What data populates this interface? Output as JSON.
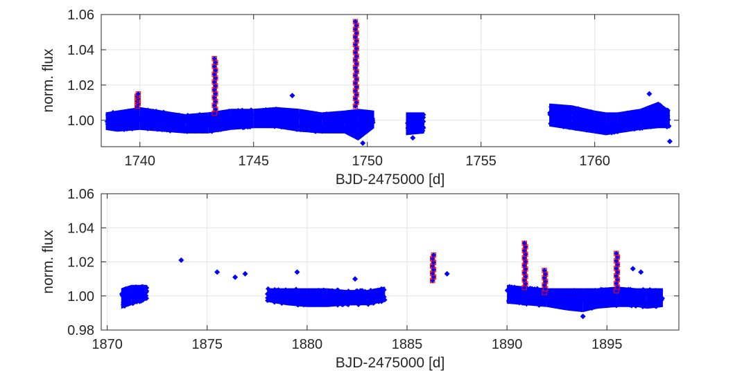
{
  "chart_data": [
    {
      "type": "scatter",
      "xlabel": "BJD-2475000 [d]",
      "ylabel": "norm. flux",
      "xlim": [
        1738.3,
        1763.7
      ],
      "ylim": [
        0.985,
        1.06
      ],
      "xticks": [
        1740,
        1745,
        1750,
        1755,
        1760
      ],
      "xtick_labels": [
        "1740",
        "1745",
        "1750",
        "1755",
        "1760"
      ],
      "yticks": [
        1.0,
        1.02,
        1.04,
        1.06
      ],
      "ytick_labels": [
        "1.00",
        "1.02",
        "1.04",
        "1.06"
      ],
      "grid": true,
      "series": [
        {
          "type": "band",
          "color": "#0000ff",
          "x": [
            1738.5,
            1739.0,
            1740.0,
            1741.0,
            1742.0,
            1743.0,
            1744.0,
            1745.0,
            1746.0,
            1747.0,
            1748.0,
            1749.0,
            1749.6,
            1750.3,
            1751.7,
            1752.5,
            1754.0,
            1756.0,
            1758.0,
            1759.0,
            1760.0,
            1760.5,
            1761.0,
            1762.0,
            1762.8,
            1763.3
          ],
          "y_low": [
            0.993,
            0.992,
            0.993,
            0.992,
            0.991,
            0.991,
            0.993,
            0.994,
            0.994,
            0.992,
            0.991,
            0.991,
            0.987,
            0.994,
            0.99,
            0.991,
            0.992,
            0.993,
            0.995,
            0.993,
            0.991,
            0.99,
            0.991,
            0.993,
            0.994,
            0.994
          ],
          "y_high": [
            1.006,
            1.007,
            1.009,
            1.007,
            1.005,
            1.006,
            1.008,
            1.008,
            1.009,
            1.008,
            1.006,
            1.007,
            1.008,
            1.007,
            1.006,
            1.006,
            1.007,
            1.009,
            1.011,
            1.01,
            1.007,
            1.006,
            1.006,
            1.008,
            1.012,
            1.007
          ]
        },
        {
          "type": "flares",
          "color": "#0000ff",
          "flagged_color": "#ff0000",
          "events": [
            {
              "x": 1739.9,
              "peak": 1.015,
              "base": 1.008
            },
            {
              "x": 1743.3,
              "peak": 1.035,
              "base": 1.004
            },
            {
              "x": 1749.5,
              "peak": 1.056,
              "base": 1.008
            }
          ]
        },
        {
          "type": "outliers",
          "color": "#0000ff",
          "x": [
            1746.7,
            1762.4,
            1763.3,
            1749.8,
            1752.0
          ],
          "y": [
            1.014,
            1.015,
            0.988,
            0.987,
            0.99
          ]
        }
      ]
    },
    {
      "type": "scatter",
      "xlabel": "BJD-2475000 [d]",
      "ylabel": "norm. flux",
      "xlim": [
        1869.7,
        1898.6
      ],
      "ylim": [
        0.98,
        1.06
      ],
      "xticks": [
        1870,
        1875,
        1880,
        1885,
        1890,
        1895
      ],
      "xtick_labels": [
        "1870",
        "1875",
        "1880",
        "1885",
        "1890",
        "1895"
      ],
      "yticks": [
        0.98,
        1.0,
        1.02,
        1.04,
        1.06
      ],
      "ytick_labels": [
        "0.98",
        "1.00",
        "1.02",
        "1.04",
        "1.06"
      ],
      "grid": true,
      "series": [
        {
          "type": "band",
          "color": "#0000ff",
          "x": [
            1870.7,
            1871.2,
            1872.0,
            1874.0,
            1876.0,
            1878.0,
            1879.0,
            1880.0,
            1881.0,
            1882.0,
            1883.0,
            1883.9,
            1885.4,
            1887.0,
            1888.5,
            1890.0,
            1891.0,
            1892.0,
            1893.0,
            1893.8,
            1894.5,
            1895.5,
            1896.5,
            1897.0,
            1897.8
          ],
          "y_low": [
            0.991,
            0.993,
            0.996,
            0.996,
            0.995,
            0.995,
            0.993,
            0.992,
            0.992,
            0.993,
            0.993,
            0.995,
            0.995,
            0.995,
            0.995,
            0.994,
            0.993,
            0.992,
            0.99,
            0.989,
            0.991,
            0.992,
            0.992,
            0.991,
            0.992
          ],
          "y_high": [
            1.006,
            1.008,
            1.008,
            1.008,
            1.007,
            1.006,
            1.006,
            1.006,
            1.006,
            1.005,
            1.005,
            1.007,
            1.008,
            1.008,
            1.008,
            1.008,
            1.007,
            1.006,
            1.006,
            1.006,
            1.006,
            1.007,
            1.006,
            1.006,
            1.006
          ]
        },
        {
          "type": "flares",
          "color": "#0000ff",
          "flagged_color": "#ff0000",
          "events": [
            {
              "x": 1886.3,
              "peak": 1.024,
              "base": 1.009
            },
            {
              "x": 1890.9,
              "peak": 1.031,
              "base": 1.005
            },
            {
              "x": 1891.9,
              "peak": 1.015,
              "base": 1.002
            },
            {
              "x": 1895.5,
              "peak": 1.025,
              "base": 1.003
            }
          ]
        },
        {
          "type": "outliers",
          "color": "#0000ff",
          "x": [
            1873.7,
            1875.5,
            1876.4,
            1876.9,
            1879.5,
            1882.4,
            1887.0,
            1896.3,
            1896.7,
            1893.8
          ],
          "y": [
            1.021,
            1.014,
            1.011,
            1.013,
            1.014,
            1.01,
            1.013,
            1.016,
            1.014,
            0.988
          ]
        }
      ]
    }
  ]
}
